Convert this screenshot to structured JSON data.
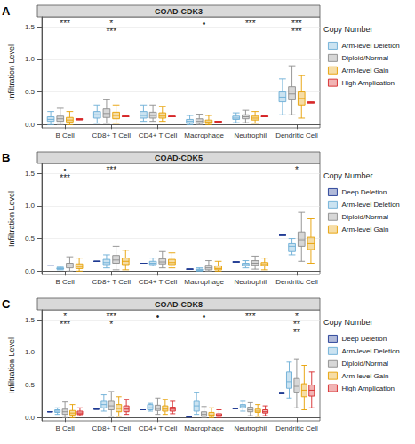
{
  "chart_data": [
    {
      "type": "boxplot",
      "panel_label": "A",
      "title": "COAD-CDK3",
      "ylabel": "Infiltration Level",
      "legend_title": "Copy Number",
      "legend": "right",
      "grid": true,
      "categories": [
        "B Cell",
        "CD8+ T Cell",
        "CD4+ T Cell",
        "Macrophage",
        "Neutrophil",
        "Dendritic Cell"
      ],
      "ylim": [
        -0.05,
        1.65
      ],
      "yticks": [
        {
          "value": 0,
          "label": "0.0"
        },
        {
          "value": 0.5,
          "label": "0.5"
        },
        {
          "value": 1,
          "label": "1.0"
        },
        {
          "value": 1.5,
          "label": "1.5"
        }
      ],
      "series": [
        {
          "name": "Arm-level Deletion",
          "color": "#6baed6",
          "values": [
            [
              0,
              0.05,
              0.08,
              0.12,
              0.2
            ],
            [
              0.02,
              0.1,
              0.15,
              0.2,
              0.3
            ],
            [
              0.05,
              0.1,
              0.14,
              0.2,
              0.3
            ],
            [
              0,
              0.02,
              0.05,
              0.08,
              0.14
            ],
            [
              0.03,
              0.08,
              0.1,
              0.13,
              0.18
            ],
            [
              0.15,
              0.35,
              0.42,
              0.5,
              0.7
            ]
          ]
        },
        {
          "name": "Diploid/Normal",
          "color": "#8c8c8c",
          "values": [
            [
              0,
              0.05,
              0.09,
              0.13,
              0.25
            ],
            [
              0.02,
              0.11,
              0.17,
              0.24,
              0.38
            ],
            [
              0.05,
              0.1,
              0.14,
              0.19,
              0.3
            ],
            [
              0,
              0.02,
              0.05,
              0.09,
              0.16
            ],
            [
              0.03,
              0.09,
              0.12,
              0.15,
              0.22
            ],
            [
              0.15,
              0.38,
              0.47,
              0.58,
              0.9
            ]
          ]
        },
        {
          "name": "Arm-level Gain",
          "color": "#e69f00",
          "values": [
            [
              0,
              0.04,
              0.07,
              0.11,
              0.2
            ],
            [
              0.02,
              0.09,
              0.14,
              0.19,
              0.3
            ],
            [
              0.05,
              0.1,
              0.13,
              0.18,
              0.28
            ],
            [
              0,
              0.02,
              0.04,
              0.07,
              0.14
            ],
            [
              0.02,
              0.07,
              0.1,
              0.13,
              0.2
            ],
            [
              0.1,
              0.3,
              0.4,
              0.5,
              0.75
            ]
          ]
        },
        {
          "name": "High Amplication",
          "color": "#d62728",
          "values": [
            [
              0.07,
              0.08,
              0.08,
              0.09,
              0.09
            ],
            [
              0.12,
              0.12,
              0.13,
              0.13,
              0.14
            ],
            [
              0.12,
              0.12,
              0.12,
              0.13,
              0.13
            ],
            [
              0.04,
              0.04,
              0.05,
              0.05,
              0.05
            ],
            [
              0.12,
              0.12,
              0.13,
              0.13,
              0.13
            ],
            [
              0.33,
              0.33,
              0.34,
              0.34,
              0.35
            ]
          ]
        }
      ],
      "annotations": [
        {
          "category": "B Cell",
          "texts": [
            "***"
          ]
        },
        {
          "category": "CD8+ T Cell",
          "texts": [
            "*",
            "***"
          ]
        },
        {
          "category": "Macrophage",
          "texts": [
            "•"
          ]
        },
        {
          "category": "Neutrophil",
          "texts": [
            "***"
          ]
        },
        {
          "category": "Dendritic Cell",
          "texts": [
            "***",
            "***"
          ]
        }
      ]
    },
    {
      "type": "boxplot",
      "panel_label": "B",
      "title": "COAD-CDK5",
      "ylabel": "Infiltration Level",
      "legend_title": "Copy Number",
      "legend": "right",
      "grid": true,
      "categories": [
        "B Cell",
        "CD8+ T Cell",
        "CD4+ T Cell",
        "Macrophage",
        "Neutrophil",
        "Dendritic Cell"
      ],
      "ylim": [
        -0.05,
        1.65
      ],
      "yticks": [
        {
          "value": 0,
          "label": "0.0"
        },
        {
          "value": 0.5,
          "label": "0.5"
        },
        {
          "value": 1,
          "label": "1.0"
        },
        {
          "value": 1.5,
          "label": "1.5"
        }
      ],
      "series": [
        {
          "name": "Deep Deletion",
          "color": "#1f3a93",
          "values": [
            [
              0.08,
              0.08,
              0.08,
              0.08,
              0.08
            ],
            [
              0.15,
              0.15,
              0.15,
              0.15,
              0.15
            ],
            [
              0.12,
              0.12,
              0.12,
              0.12,
              0.12
            ],
            [
              0.03,
              0.03,
              0.03,
              0.03,
              0.03
            ],
            [
              0.14,
              0.14,
              0.14,
              0.14,
              0.14
            ],
            [
              0.55,
              0.55,
              0.55,
              0.55,
              0.55
            ]
          ]
        },
        {
          "name": "Arm-level Deletion",
          "color": "#6baed6",
          "values": [
            [
              0.02,
              0.03,
              0.04,
              0.05,
              0.07
            ],
            [
              0.05,
              0.1,
              0.13,
              0.18,
              0.25
            ],
            [
              0.08,
              0.1,
              0.12,
              0.15,
              0.2
            ],
            [
              0,
              0.01,
              0.02,
              0.03,
              0.05
            ],
            [
              0.05,
              0.08,
              0.1,
              0.12,
              0.16
            ],
            [
              0.25,
              0.3,
              0.38,
              0.42,
              0.5
            ]
          ]
        },
        {
          "name": "Diploid/Normal",
          "color": "#8c8c8c",
          "values": [
            [
              0,
              0.05,
              0.08,
              0.12,
              0.22
            ],
            [
              0.02,
              0.12,
              0.17,
              0.24,
              0.38
            ],
            [
              0.05,
              0.11,
              0.14,
              0.19,
              0.3
            ],
            [
              0,
              0.02,
              0.05,
              0.09,
              0.16
            ],
            [
              0.03,
              0.09,
              0.12,
              0.16,
              0.23
            ],
            [
              0.15,
              0.38,
              0.48,
              0.6,
              0.9
            ]
          ]
        },
        {
          "name": "Arm-level Gain",
          "color": "#e69f00",
          "values": [
            [
              0,
              0.04,
              0.07,
              0.11,
              0.2
            ],
            [
              0.02,
              0.1,
              0.15,
              0.2,
              0.32
            ],
            [
              0.05,
              0.1,
              0.13,
              0.18,
              0.28
            ],
            [
              0,
              0.02,
              0.04,
              0.08,
              0.15
            ],
            [
              0.02,
              0.08,
              0.1,
              0.13,
              0.2
            ],
            [
              0.12,
              0.33,
              0.42,
              0.52,
              0.8
            ]
          ]
        }
      ],
      "annotations": [
        {
          "category": "B Cell",
          "texts": [
            "•",
            "***"
          ]
        },
        {
          "category": "CD8+ T Cell",
          "texts": [
            "***"
          ]
        },
        {
          "category": "Dendritic Cell",
          "texts": [
            "*"
          ]
        }
      ]
    },
    {
      "type": "boxplot",
      "panel_label": "C",
      "title": "COAD-CDK8",
      "ylabel": "Infiltration Level",
      "legend_title": "Copy Number",
      "legend": "right",
      "grid": true,
      "categories": [
        "B Cell",
        "CD8+ T Cell",
        "CD4+ T Cell",
        "Macrophage",
        "Neutrophil",
        "Dendritic Cell"
      ],
      "ylim": [
        -0.05,
        1.65
      ],
      "yticks": [
        {
          "value": 0,
          "label": "0.0"
        },
        {
          "value": 0.5,
          "label": "0.5"
        },
        {
          "value": 1,
          "label": "1.0"
        },
        {
          "value": 1.5,
          "label": "1.5"
        }
      ],
      "series": [
        {
          "name": "Deep Deletion",
          "color": "#1f3a93",
          "values": [
            [
              0.09,
              0.09,
              0.09,
              0.09,
              0.09
            ],
            [
              0.13,
              0.13,
              0.13,
              0.13,
              0.13
            ],
            [
              0.12,
              0.12,
              0.12,
              0.12,
              0.12
            ],
            [
              0.01,
              0.01,
              0.01,
              0.01,
              0.01
            ],
            [
              0.14,
              0.14,
              0.14,
              0.14,
              0.14
            ],
            [
              0.37,
              0.37,
              0.37,
              0.37,
              0.37
            ]
          ]
        },
        {
          "name": "Arm-level Deletion",
          "color": "#6baed6",
          "values": [
            [
              0.05,
              0.08,
              0.1,
              0.12,
              0.15
            ],
            [
              0.1,
              0.15,
              0.2,
              0.25,
              0.35
            ],
            [
              0.1,
              0.12,
              0.15,
              0.2,
              0.22
            ],
            [
              0.05,
              0.1,
              0.18,
              0.25,
              0.38
            ],
            [
              0.1,
              0.15,
              0.18,
              0.2,
              0.25
            ],
            [
              0.3,
              0.45,
              0.55,
              0.7,
              0.85
            ]
          ]
        },
        {
          "name": "Diploid/Normal",
          "color": "#8c8c8c",
          "values": [
            [
              0,
              0.05,
              0.09,
              0.13,
              0.24
            ],
            [
              0.02,
              0.12,
              0.18,
              0.25,
              0.4
            ],
            [
              0.05,
              0.11,
              0.14,
              0.19,
              0.3
            ],
            [
              0,
              0.02,
              0.05,
              0.09,
              0.17
            ],
            [
              0.03,
              0.09,
              0.12,
              0.16,
              0.23
            ],
            [
              0.15,
              0.38,
              0.48,
              0.6,
              0.9
            ]
          ]
        },
        {
          "name": "Arm-level Gain",
          "color": "#e69f00",
          "values": [
            [
              0,
              0.04,
              0.07,
              0.11,
              0.2
            ],
            [
              0.02,
              0.09,
              0.14,
              0.2,
              0.32
            ],
            [
              0.05,
              0.1,
              0.13,
              0.18,
              0.28
            ],
            [
              0,
              0.02,
              0.04,
              0.08,
              0.15
            ],
            [
              0.02,
              0.08,
              0.1,
              0.13,
              0.2
            ],
            [
              0.12,
              0.32,
              0.42,
              0.52,
              0.8
            ]
          ]
        },
        {
          "name": "High Amplication",
          "color": "#d62728",
          "values": [
            [
              0.03,
              0.05,
              0.07,
              0.1,
              0.15
            ],
            [
              0.05,
              0.09,
              0.13,
              0.18,
              0.28
            ],
            [
              0.06,
              0.1,
              0.13,
              0.16,
              0.25
            ],
            [
              0,
              0.02,
              0.04,
              0.06,
              0.12
            ],
            [
              0.03,
              0.07,
              0.09,
              0.12,
              0.18
            ],
            [
              0.15,
              0.33,
              0.42,
              0.5,
              0.7
            ]
          ]
        }
      ],
      "annotations": [
        {
          "category": "B Cell",
          "texts": [
            "*",
            "***"
          ]
        },
        {
          "category": "CD8+ T Cell",
          "texts": [
            "***",
            "*"
          ]
        },
        {
          "category": "CD4+ T Cell",
          "texts": [
            "•"
          ]
        },
        {
          "category": "Macrophage",
          "texts": [
            "•"
          ]
        },
        {
          "category": "Neutrophil",
          "texts": [
            "***"
          ]
        },
        {
          "category": "Dendritic Cell",
          "texts": [
            "*",
            "**",
            "**"
          ]
        }
      ]
    }
  ]
}
